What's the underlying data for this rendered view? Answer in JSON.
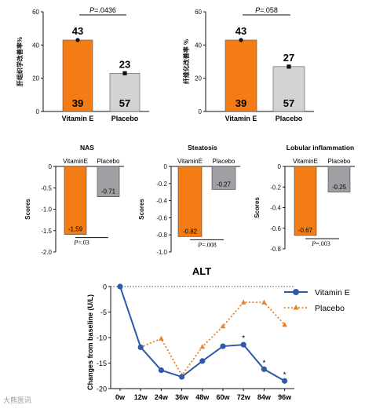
{
  "chart_data": [
    {
      "type": "bar",
      "ylabel": "肝组织学改善率%",
      "yticks": [
        0,
        20,
        40,
        60
      ],
      "ylim": [
        0,
        60
      ],
      "categories": [
        "Vitamin E",
        "Placebo"
      ],
      "values": [
        43,
        23
      ],
      "value_labels": [
        "43",
        "23"
      ],
      "inner_labels": [
        "39",
        "57"
      ],
      "colors": [
        "#f47c14",
        "#d3d3d3"
      ],
      "marker_shapes": [
        "circle",
        "square"
      ],
      "annotation": "P=.0436"
    },
    {
      "type": "bar",
      "ylabel": "纤维化改善率 %",
      "yticks": [
        0,
        20,
        40,
        60
      ],
      "ylim": [
        0,
        60
      ],
      "categories": [
        "Vitamin E",
        "Placebo"
      ],
      "values": [
        43,
        27
      ],
      "value_labels": [
        "43",
        "27"
      ],
      "inner_labels": [
        "39",
        "57"
      ],
      "colors": [
        "#f47c14",
        "#d3d3d3"
      ],
      "marker_shapes": [
        "circle",
        "square"
      ],
      "annotation": "P=.058"
    },
    {
      "type": "bar",
      "title": "NAS",
      "ylabel": "Scores",
      "yticks": [
        "0",
        "-0.5",
        "-1.0",
        "-1.5",
        "-2.0"
      ],
      "ytick_values": [
        0,
        -0.5,
        -1.0,
        -1.5,
        -2.0
      ],
      "ylim": [
        -2.0,
        0
      ],
      "categories": [
        "VitaminE",
        "Placebo"
      ],
      "values": [
        -1.59,
        -0.71
      ],
      "value_labels": [
        "-1.59",
        "-0.71"
      ],
      "colors": [
        "#f47c14",
        "#a0a0a4"
      ],
      "annotation": "P=.03"
    },
    {
      "type": "bar",
      "title": "Steatosis",
      "ylabel": "Scores",
      "yticks": [
        "0",
        "-0.2",
        "-0.4",
        "-0.6",
        "-0.8",
        "-1.0"
      ],
      "ytick_values": [
        0,
        -0.2,
        -0.4,
        -0.6,
        -0.8,
        -1.0
      ],
      "ylim": [
        -1.0,
        0
      ],
      "categories": [
        "VitaminE",
        "Placebo"
      ],
      "values": [
        -0.82,
        -0.27
      ],
      "value_labels": [
        "-0.82",
        "-0.27"
      ],
      "colors": [
        "#f47c14",
        "#a0a0a4"
      ],
      "annotation": "P=.008"
    },
    {
      "type": "bar",
      "title": "Lobular inflammation",
      "ylabel": "Scores",
      "yticks": [
        "0",
        "-0.2",
        "-0.4",
        "-0.6",
        "-0.8"
      ],
      "ytick_values": [
        0,
        -0.2,
        -0.4,
        -0.6,
        -0.8
      ],
      "ylim": [
        -0.8,
        0
      ],
      "categories": [
        "VitaminE",
        "Placebo"
      ],
      "values": [
        -0.67,
        -0.25
      ],
      "value_labels": [
        "-0.67",
        "-0.25"
      ],
      "colors": [
        "#f47c14",
        "#a0a0a4"
      ],
      "annotation": "P=.003"
    },
    {
      "type": "line",
      "title": "ALT",
      "ylabel": "Changes from baseline (U/L)",
      "x": [
        "0w",
        "12w",
        "24w",
        "36w",
        "48w",
        "60w",
        "72w",
        "84w",
        "96w"
      ],
      "yticks": [
        0,
        -5,
        -10,
        -15,
        -20
      ],
      "ylim": [
        -20,
        0
      ],
      "series": [
        {
          "name": "Vitamin E",
          "color": "#2e5aa7",
          "marker": "circle",
          "values": [
            0,
            -11.9,
            -16.4,
            -17.7,
            -14.6,
            -11.7,
            -11.4,
            -16.2,
            -18.5
          ]
        },
        {
          "name": "Placebo",
          "color": "#e8822a",
          "marker": "triangle",
          "values": [
            0,
            -11.9,
            -10.2,
            -17.4,
            -11.8,
            -7.8,
            -3.1,
            -3.1,
            -7.5
          ]
        }
      ],
      "significance_marks": [
        {
          "x": "72w",
          "label": "*"
        },
        {
          "x": "84w",
          "label": "*"
        },
        {
          "x": "96w",
          "label": "*"
        }
      ]
    }
  ],
  "watermark": "大熊医讯"
}
